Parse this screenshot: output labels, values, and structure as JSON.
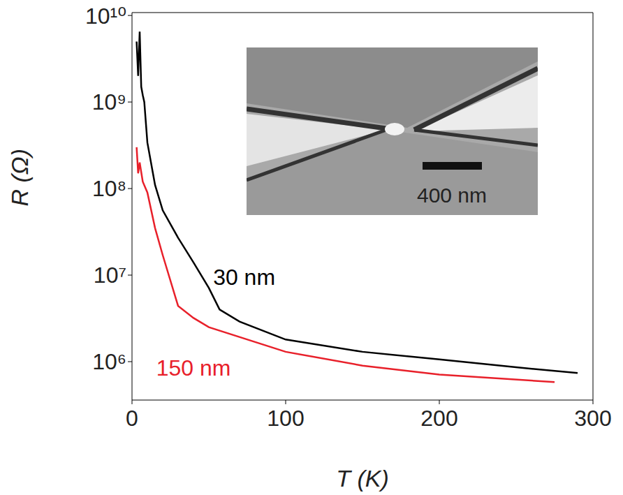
{
  "chart_data": {
    "type": "line",
    "x_label": "T (K)",
    "y_label": "R (Ω)",
    "xlim": [
      0,
      300
    ],
    "xticks": [
      0,
      100,
      200,
      300
    ],
    "ylim": [
      360000,
      10800000000
    ],
    "yticks": [
      {
        "value": 1000000,
        "label": "10⁶"
      },
      {
        "value": 10000000,
        "label": "10⁷"
      },
      {
        "value": 100000000,
        "label": "10⁸"
      },
      {
        "value": 1000000000,
        "label": "10⁹"
      },
      {
        "value": 10000000000,
        "label": "10¹⁰"
      }
    ],
    "log": "y",
    "grid": false,
    "series": [
      {
        "name": "30 nm",
        "color": "#000000",
        "x": [
          3,
          4,
          5,
          6,
          7,
          8,
          10,
          15,
          20,
          30,
          40,
          50,
          57,
          70,
          100,
          150,
          200,
          250,
          290
        ],
        "values": [
          5000000000,
          2000000000,
          6500000000,
          1500000000,
          1200000000,
          1000000000,
          340000000,
          110000000,
          56000000,
          27000000,
          14000000,
          7100000,
          4000000,
          2900000,
          1800000,
          1300000,
          1060000,
          860000,
          740000
        ]
      },
      {
        "name": "150 nm",
        "color": "#e8202a",
        "x": [
          3,
          4,
          5,
          7,
          10,
          15,
          20,
          30,
          40,
          50,
          100,
          150,
          200,
          275
        ],
        "values": [
          300000000,
          150000000,
          200000000,
          120000000,
          90000000,
          35000000,
          17000000,
          4400000,
          3200000,
          2500000,
          1300000,
          900000,
          710000,
          580000
        ]
      }
    ],
    "annotations": [
      {
        "text": "30 nm",
        "x": 73,
        "y": 9500000,
        "color": "#000000"
      },
      {
        "text": "150 nm",
        "x": 40,
        "y": 850000,
        "color": "#e8202a"
      }
    ],
    "inset": {
      "scale_bar_label": "400 nm"
    }
  }
}
